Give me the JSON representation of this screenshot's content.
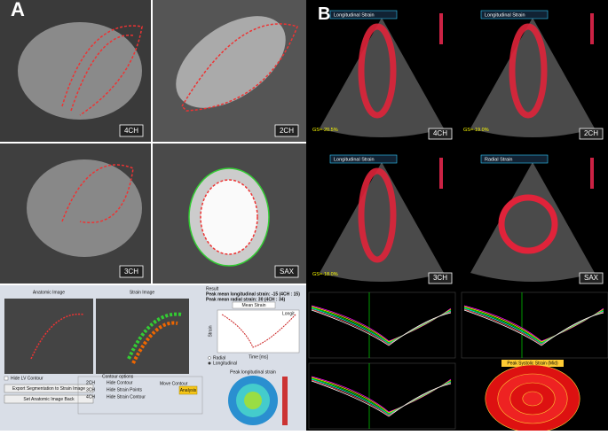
{
  "panel_a": {
    "label": "A",
    "views": [
      "4CH",
      "2CH",
      "3CH",
      "SAX"
    ],
    "ui": {
      "anatomic_title": "Anatomic Image",
      "strain_title": "Strain Image",
      "result_title": "Result",
      "result_lines": [
        "Peak mean longitudinal strain: -15 (4CH : 15)",
        "Peak mean radial strain: 30 (4CH : 34)"
      ],
      "dropdown": "Mean Strain",
      "y_label": "Strain",
      "x_label": "Time [ms]",
      "legend": "Longit",
      "radio": [
        "Radial",
        "Longitudinal"
      ],
      "checkbox": "Hide LV Contour",
      "buttons": [
        "Export Segmentation to Strain Image",
        "Set Anatomic Image Back"
      ],
      "contour_title": "Contour options",
      "views": [
        "2CH",
        "3CH",
        "4CH"
      ],
      "options": [
        "Hide Contour",
        "Hide Strain Points",
        "Hide Strain Contour"
      ],
      "move": "Move Contour",
      "analysis": "Analysis",
      "bullseye_title": "Peak longitudinal strain"
    }
  },
  "panel_b": {
    "label": "B",
    "titles": [
      "Longitudinal Strain",
      "Longitudinal Strain",
      "Longitudinal Strain",
      "Radial Strain"
    ],
    "gs": [
      "GS=-20.5%",
      "GS=-19.0%",
      "GS=-18.0%"
    ],
    "views": [
      "4CH",
      "2CH",
      "3CH",
      "SAX"
    ],
    "bullseye_title": "Peak Systolic Strain (Mid)"
  }
}
